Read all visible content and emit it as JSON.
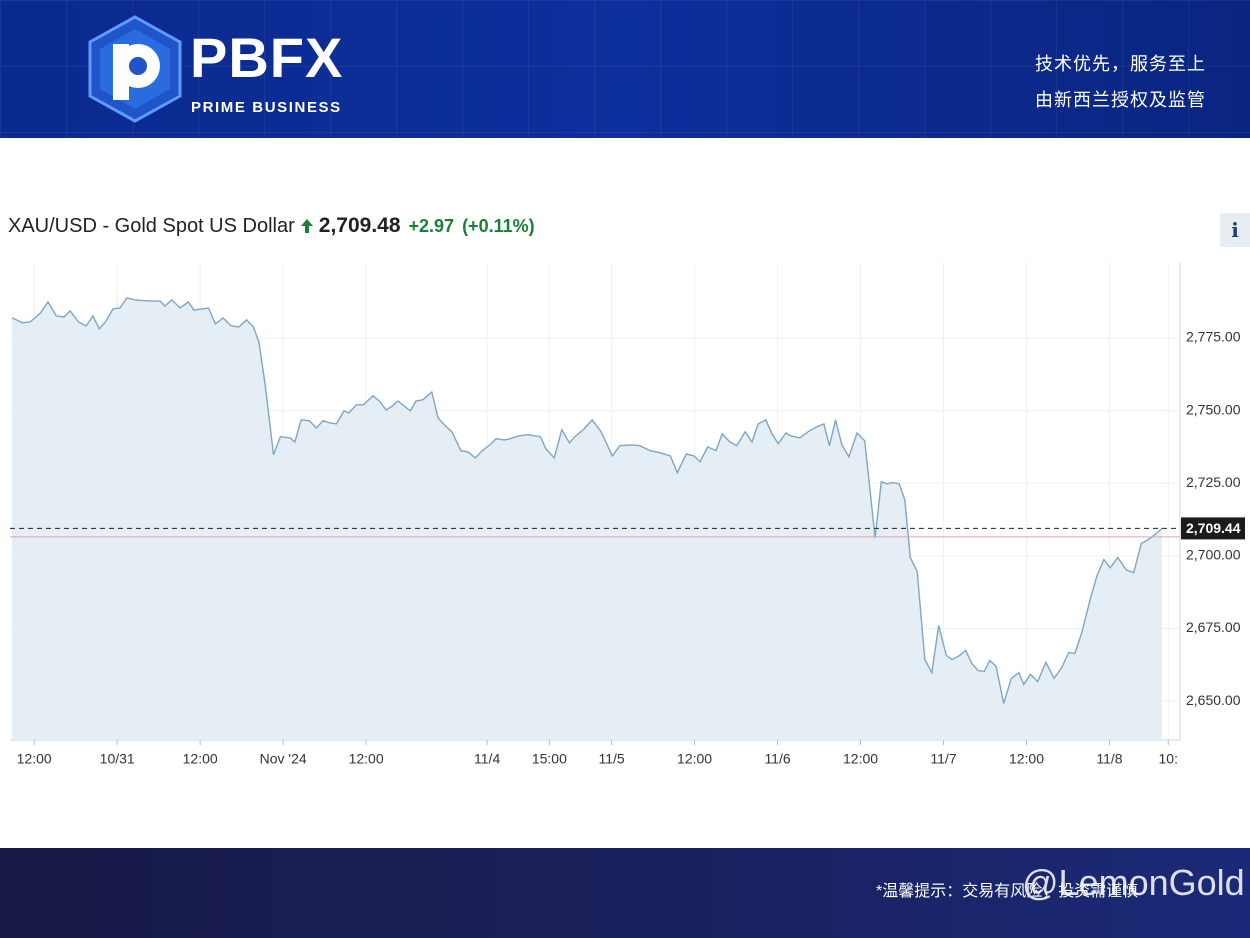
{
  "header": {
    "logo_text": "PBFX",
    "logo_subtitle": "PRIME BUSINESS",
    "tagline_1": "技术优先，服务至上",
    "tagline_2": "由新西兰授权及监管"
  },
  "quote": {
    "price": "2,709.48",
    "change": "+2.97",
    "change_pct": "(+0.11%)",
    "info_button": "i"
  },
  "chart_data": {
    "type": "area",
    "title": "XAU/USD - Gold Spot US Dollar",
    "color": "#7ea6c6",
    "fill_color": "#e5edf5",
    "grid": true,
    "y_axis_side": "right",
    "xlim": [
      8.5,
      177.7
    ],
    "ylim": [
      2636.6,
      2800.8
    ],
    "xticks": [
      {
        "value": 12,
        "label": "12:00"
      },
      {
        "value": 24,
        "label": "10/31"
      },
      {
        "value": 36,
        "label": "12:00"
      },
      {
        "value": 48,
        "label": "Nov '24"
      },
      {
        "value": 60,
        "label": "12:00"
      },
      {
        "value": 77.5,
        "label": "11/4"
      },
      {
        "value": 86.5,
        "label": "15:00"
      },
      {
        "value": 95.5,
        "label": "11/5"
      },
      {
        "value": 107.5,
        "label": "12:00"
      },
      {
        "value": 119.5,
        "label": "11/6"
      },
      {
        "value": 131.5,
        "label": "12:00"
      },
      {
        "value": 143.5,
        "label": "11/7"
      },
      {
        "value": 155.5,
        "label": "12:00"
      },
      {
        "value": 167.5,
        "label": "11/8"
      },
      {
        "value": 176,
        "label": "10:"
      }
    ],
    "yticks": [
      {
        "value": 2650,
        "label": "2,650.00"
      },
      {
        "value": 2675,
        "label": "2,675.00"
      },
      {
        "value": 2700,
        "label": "2,700.00"
      },
      {
        "value": 2725,
        "label": "2,725.00"
      },
      {
        "value": 2750,
        "label": "2,750.00"
      },
      {
        "value": 2775,
        "label": "2,775.00"
      }
    ],
    "last_price": {
      "value": 2709.44,
      "label": "2,709.44"
    },
    "reference_line": 2706.51,
    "x": [
      8.8,
      10.3,
      11.4,
      12.9,
      14.0,
      15.2,
      16.3,
      17.2,
      18.4,
      19.5,
      20.5,
      21.4,
      22.3,
      23.4,
      24.4,
      25.4,
      26.6,
      28.8,
      30.2,
      30.9,
      31.9,
      33.1,
      34.3,
      35.1,
      37.2,
      38.2,
      39.3,
      40.5,
      41.6,
      42.7,
      43.7,
      44.5,
      45.4,
      46.6,
      47.6,
      49.0,
      49.7,
      50.6,
      51.8,
      52.8,
      53.8,
      54.7,
      55.7,
      56.8,
      57.5,
      58.6,
      59.6,
      61.0,
      61.9,
      62.9,
      63.8,
      64.6,
      66.4,
      67.2,
      68.2,
      69.5,
      70.4,
      71.3,
      72.4,
      73.7,
      74.7,
      75.8,
      76.8,
      77.9,
      78.8,
      80.0,
      80.8,
      82.1,
      83.4,
      85.2,
      86.0,
      87.2,
      88.3,
      89.4,
      90.2,
      91.4,
      92.7,
      94.0,
      95.6,
      96.7,
      98.3,
      99.6,
      101.1,
      102.5,
      104.0,
      105.0,
      106.3,
      107.4,
      108.3,
      109.4,
      110.6,
      111.5,
      112.6,
      113.6,
      114.8,
      115.8,
      116.7,
      117.8,
      118.7,
      119.6,
      120.7,
      121.4,
      122.7,
      123.9,
      125.2,
      126.2,
      127.0,
      127.9,
      128.8,
      129.8,
      131.0,
      132.1,
      133.6,
      134.5,
      135.3,
      136.2,
      137.1,
      137.9,
      138.7,
      139.7,
      140.8,
      141.8,
      142.8,
      143.9,
      144.7,
      145.6,
      146.7,
      147.6,
      148.5,
      149.4,
      150.2,
      151.1,
      152.2,
      153.3,
      154.4,
      155.1,
      156.1,
      157.1,
      158.3,
      159.5,
      160.6,
      161.6,
      162.5,
      163.5,
      164.7,
      165.7,
      166.7,
      167.6,
      168.7,
      169.9,
      171.0,
      172.1,
      173.1,
      174.1,
      175.1
    ],
    "values": [
      2781.9,
      2780.2,
      2780.5,
      2783.6,
      2787.4,
      2782.6,
      2782.2,
      2784.3,
      2780.5,
      2779.1,
      2782.6,
      2778.1,
      2780.5,
      2785.0,
      2785.3,
      2788.8,
      2788.1,
      2787.7,
      2787.7,
      2786.0,
      2788.1,
      2785.3,
      2787.4,
      2784.6,
      2785.3,
      2779.8,
      2781.9,
      2779.1,
      2778.8,
      2781.2,
      2778.8,
      2773.6,
      2758.8,
      2734.8,
      2741.0,
      2740.6,
      2739.2,
      2746.8,
      2746.5,
      2744.0,
      2746.5,
      2745.8,
      2745.4,
      2749.9,
      2749.2,
      2752.0,
      2752.0,
      2755.1,
      2753.3,
      2750.2,
      2751.6,
      2753.3,
      2749.9,
      2753.3,
      2753.7,
      2756.4,
      2747.5,
      2745.1,
      2742.7,
      2736.2,
      2735.8,
      2733.7,
      2736.2,
      2738.2,
      2740.3,
      2739.9,
      2740.3,
      2741.3,
      2741.7,
      2741.0,
      2736.8,
      2733.7,
      2743.4,
      2738.9,
      2741.0,
      2743.4,
      2746.8,
      2742.7,
      2734.4,
      2737.9,
      2738.2,
      2737.9,
      2736.2,
      2735.5,
      2734.4,
      2728.6,
      2735.1,
      2734.4,
      2732.4,
      2737.5,
      2736.2,
      2742.0,
      2739.2,
      2737.9,
      2742.7,
      2739.2,
      2745.4,
      2746.8,
      2742.0,
      2738.6,
      2742.3,
      2741.3,
      2740.6,
      2742.7,
      2744.4,
      2745.4,
      2737.9,
      2746.8,
      2738.2,
      2734.1,
      2742.3,
      2739.6,
      2706.2,
      2725.5,
      2724.8,
      2725.2,
      2724.8,
      2719.3,
      2699.4,
      2694.6,
      2664.3,
      2659.8,
      2676.0,
      2665.7,
      2664.3,
      2665.3,
      2667.4,
      2662.9,
      2660.5,
      2660.2,
      2664.0,
      2661.9,
      2649.2,
      2657.8,
      2659.8,
      2655.7,
      2659.2,
      2656.7,
      2663.3,
      2657.8,
      2661.6,
      2666.7,
      2666.4,
      2673.6,
      2684.9,
      2693.2,
      2698.7,
      2695.9,
      2699.4,
      2695.2,
      2694.2,
      2704.2,
      2705.6,
      2707.3,
      2709.44
    ]
  },
  "footer": {
    "notice": "*温馨提示：交易有风险，投资需谨慎",
    "watermark": "@LemonGold"
  }
}
